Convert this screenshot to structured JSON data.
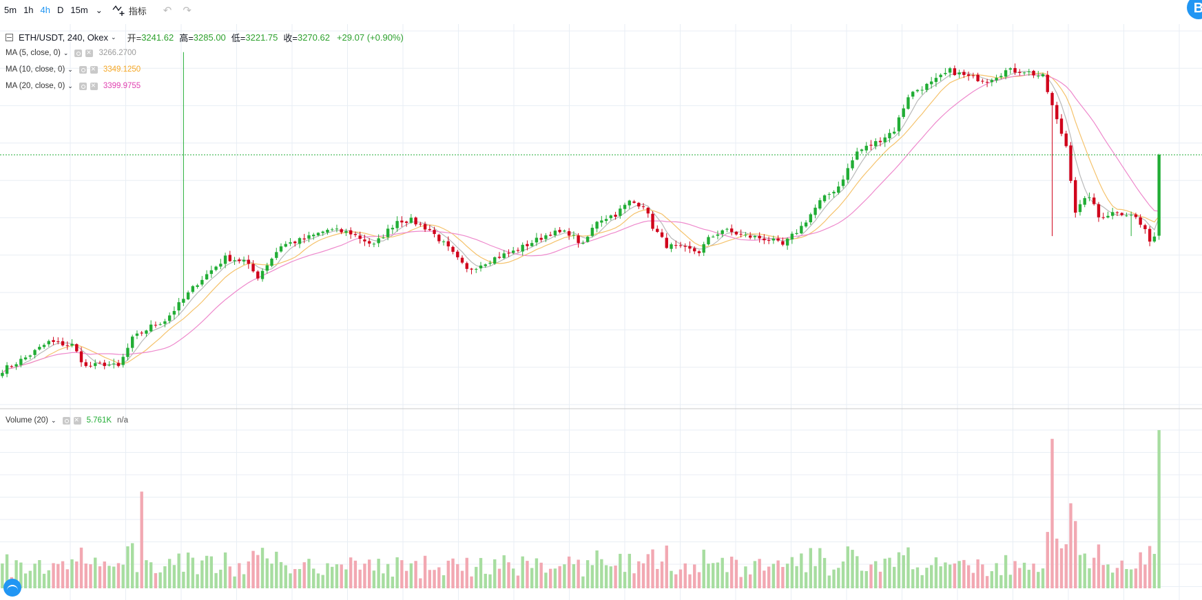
{
  "toolbar": {
    "intervals": [
      "5m",
      "1h",
      "4h",
      "D",
      "15m"
    ],
    "active_interval": "4h",
    "indicators_label": "指标"
  },
  "main_legend": {
    "symbol": "ETH/USDT, 240, Okex",
    "open_label": "开=",
    "open": "3241.62",
    "high_label": "高=",
    "high": "3285.00",
    "low_label": "低=",
    "low": "3221.75",
    "close_label": "收=",
    "close": "3270.62",
    "change": "+29.07 (+0.90%)"
  },
  "ma_legends": [
    {
      "label": "MA (5, close, 0)",
      "value": "3266.2700",
      "color": "#9b9b9b"
    },
    {
      "label": "MA (10, close, 0)",
      "value": "3349.1250",
      "color": "#f5a623"
    },
    {
      "label": "MA (20, close, 0)",
      "value": "3399.9755",
      "color": "#e040b0"
    }
  ],
  "volume_legend": {
    "label": "Volume (20)",
    "value": "5.761K",
    "value2": "n/a"
  },
  "colors": {
    "up": "#21ad35",
    "down": "#d0021b",
    "vol_up": "#a7dda0",
    "vol_down": "#f2a8b2",
    "grid": "#e8eef4",
    "last_price_line": "#21ad35"
  },
  "chart_data": {
    "type": "candlestick",
    "x_range": [
      0,
      249
    ],
    "price_ylim": [
      2465,
      3690
    ],
    "volume_ylim": [
      0,
      36
    ],
    "last_close": 3270.62,
    "grid": true,
    "anchors": [
      [
        0,
        2580
      ],
      [
        5,
        2620
      ],
      [
        10,
        2670
      ],
      [
        15,
        2660
      ],
      [
        18,
        2590
      ],
      [
        22,
        2600
      ],
      [
        25,
        2590
      ],
      [
        28,
        2680
      ],
      [
        32,
        2720
      ],
      [
        35,
        2740
      ],
      [
        38,
        2790
      ],
      [
        42,
        2860
      ],
      [
        45,
        2900
      ],
      [
        48,
        2940
      ],
      [
        52,
        2930
      ],
      [
        55,
        2880
      ],
      [
        60,
        2980
      ],
      [
        65,
        3000
      ],
      [
        70,
        3030
      ],
      [
        75,
        3020
      ],
      [
        80,
        2980
      ],
      [
        85,
        3060
      ],
      [
        88,
        3060
      ],
      [
        92,
        3030
      ],
      [
        96,
        2970
      ],
      [
        100,
        2900
      ],
      [
        103,
        2920
      ],
      [
        106,
        2940
      ],
      [
        110,
        2960
      ],
      [
        114,
        2990
      ],
      [
        118,
        3020
      ],
      [
        122,
        3020
      ],
      [
        125,
        2980
      ],
      [
        128,
        3060
      ],
      [
        132,
        3080
      ],
      [
        135,
        3120
      ],
      [
        138,
        3110
      ],
      [
        140,
        3040
      ],
      [
        143,
        2980
      ],
      [
        146,
        2970
      ],
      [
        150,
        2960
      ],
      [
        152,
        3000
      ],
      [
        155,
        3030
      ],
      [
        160,
        3010
      ],
      [
        165,
        3000
      ],
      [
        168,
        2980
      ],
      [
        172,
        3040
      ],
      [
        176,
        3120
      ],
      [
        180,
        3170
      ],
      [
        184,
        3280
      ],
      [
        188,
        3310
      ],
      [
        192,
        3350
      ],
      [
        195,
        3460
      ],
      [
        197,
        3480
      ],
      [
        200,
        3500
      ],
      [
        204,
        3540
      ],
      [
        208,
        3520
      ],
      [
        212,
        3510
      ],
      [
        216,
        3540
      ],
      [
        220,
        3540
      ],
      [
        224,
        3520
      ],
      [
        227,
        3380
      ],
      [
        229,
        3300
      ],
      [
        231,
        3090
      ],
      [
        234,
        3140
      ],
      [
        236,
        3070
      ],
      [
        240,
        3090
      ],
      [
        244,
        3070
      ],
      [
        247,
        3000
      ],
      [
        249,
        3020
      ]
    ],
    "spikes": {
      "39": 3600,
      "226": 3010,
      "243": 3010
    },
    "volume_spikes": {
      "30": 22,
      "226": 34,
      "227": 11.3
    },
    "seed": 7
  }
}
